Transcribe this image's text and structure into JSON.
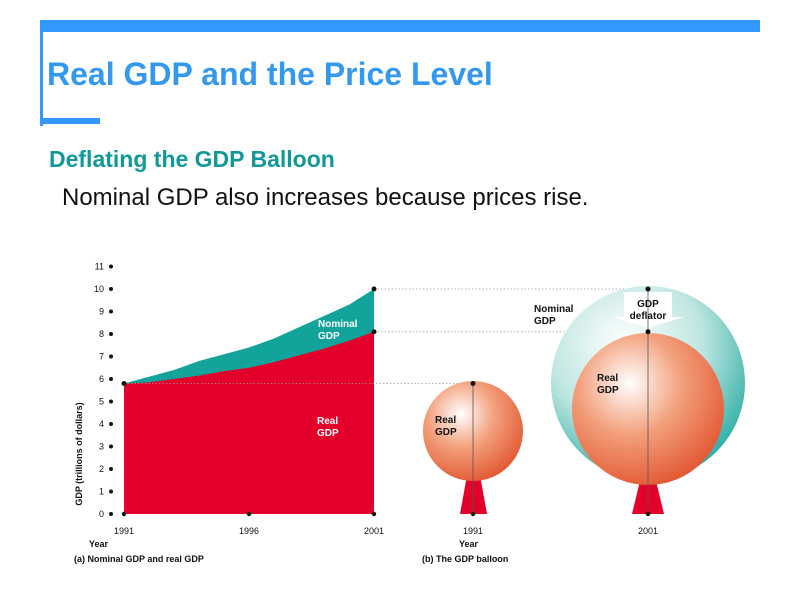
{
  "slide": {
    "title": "Real GDP and the Price Level",
    "subtitle": "Deflating the GDP Balloon",
    "bullet": "Nominal GDP also increases because prices rise."
  },
  "colors": {
    "accent": "#3399ff",
    "title": "#3399ee",
    "subtitle": "#119999",
    "nominal": "#12a39a",
    "real": "#e3002b"
  },
  "chart_data": [
    {
      "type": "area",
      "caption": "(a) Nominal GDP and real GDP",
      "xlabel": "Year",
      "ylabel": "GDP (trillions of dollars)",
      "ylim": [
        0,
        11
      ],
      "xlim": [
        1991,
        2001
      ],
      "yticks": [
        "0",
        "1",
        "2",
        "3",
        "4",
        "5",
        "6",
        "7",
        "8",
        "9",
        "10",
        "11"
      ],
      "xticks": [
        "1991",
        "1996",
        "2001"
      ],
      "x": [
        1991,
        1992,
        1993,
        1994,
        1995,
        1996,
        1997,
        1998,
        1999,
        2000,
        2001
      ],
      "series": [
        {
          "name": "Nominal GDP",
          "values": [
            5.8,
            6.1,
            6.4,
            6.8,
            7.1,
            7.4,
            7.8,
            8.3,
            8.8,
            9.3,
            10.0
          ]
        },
        {
          "name": "Real GDP",
          "values": [
            5.8,
            5.85,
            6.0,
            6.15,
            6.35,
            6.5,
            6.75,
            7.05,
            7.35,
            7.7,
            8.1
          ]
        }
      ],
      "labels": {
        "nominal": [
          "Nominal",
          "GDP"
        ],
        "real": [
          "Real",
          "GDP"
        ]
      }
    },
    {
      "type": "diagram",
      "caption": "(b) The GDP balloon",
      "xlabel": "Year",
      "xticks": [
        "1991",
        "2001"
      ],
      "balloons": [
        {
          "year": "1991",
          "real_gdp": 5.8,
          "label": [
            "Real",
            "GDP"
          ]
        },
        {
          "year": "2001",
          "real_gdp": 8.1,
          "nominal_gdp": 10.0,
          "label": [
            "Real",
            "GDP"
          ],
          "nominal_label": [
            "Nominal",
            "GDP"
          ],
          "deflator_label": [
            "GDP",
            "deflator"
          ]
        }
      ]
    }
  ]
}
